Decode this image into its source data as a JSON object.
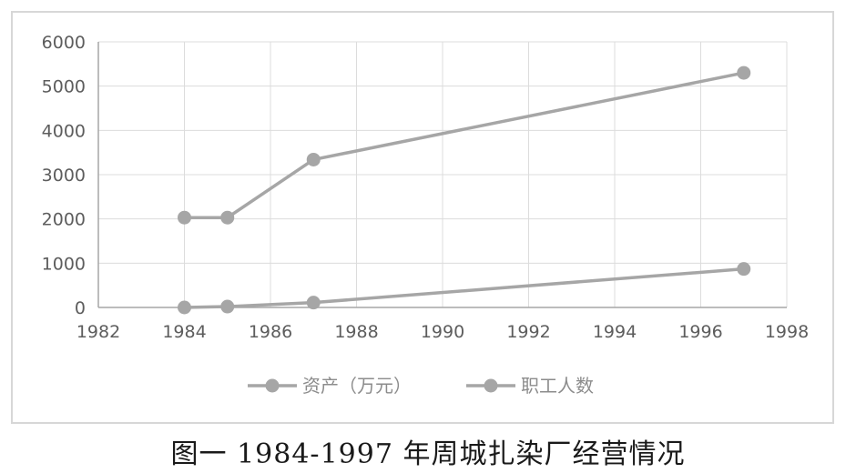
{
  "caption": "图一 1984-1997 年周城扎染厂经营情况",
  "colors": {
    "series": "#a6a6a6",
    "grid": "#dcdcdc",
    "axis": "#a6a6a6",
    "tick_text": "#5d5d5d",
    "legend_text": "#8c8c8c"
  },
  "chart_data": {
    "type": "scatter",
    "mode": "lines+markers",
    "title": "",
    "xlabel": "",
    "ylabel": "",
    "xlim": [
      1982,
      1998
    ],
    "ylim": [
      0,
      6000
    ],
    "x_ticks": [
      "1982",
      "1984",
      "1986",
      "1988",
      "1990",
      "1992",
      "1994",
      "1996",
      "1998"
    ],
    "y_ticks": [
      "0",
      "1000",
      "2000",
      "3000",
      "4000",
      "5000",
      "6000"
    ],
    "grid": true,
    "legend_position": "bottom",
    "series": [
      {
        "name": "资产（万元）",
        "x": [
          1984,
          1985,
          1987,
          1997
        ],
        "y": [
          2030,
          2030,
          3340,
          5300
        ]
      },
      {
        "name": "职工人数",
        "x": [
          1984,
          1985,
          1987,
          1997
        ],
        "y": [
          0,
          20,
          110,
          870
        ]
      }
    ]
  }
}
